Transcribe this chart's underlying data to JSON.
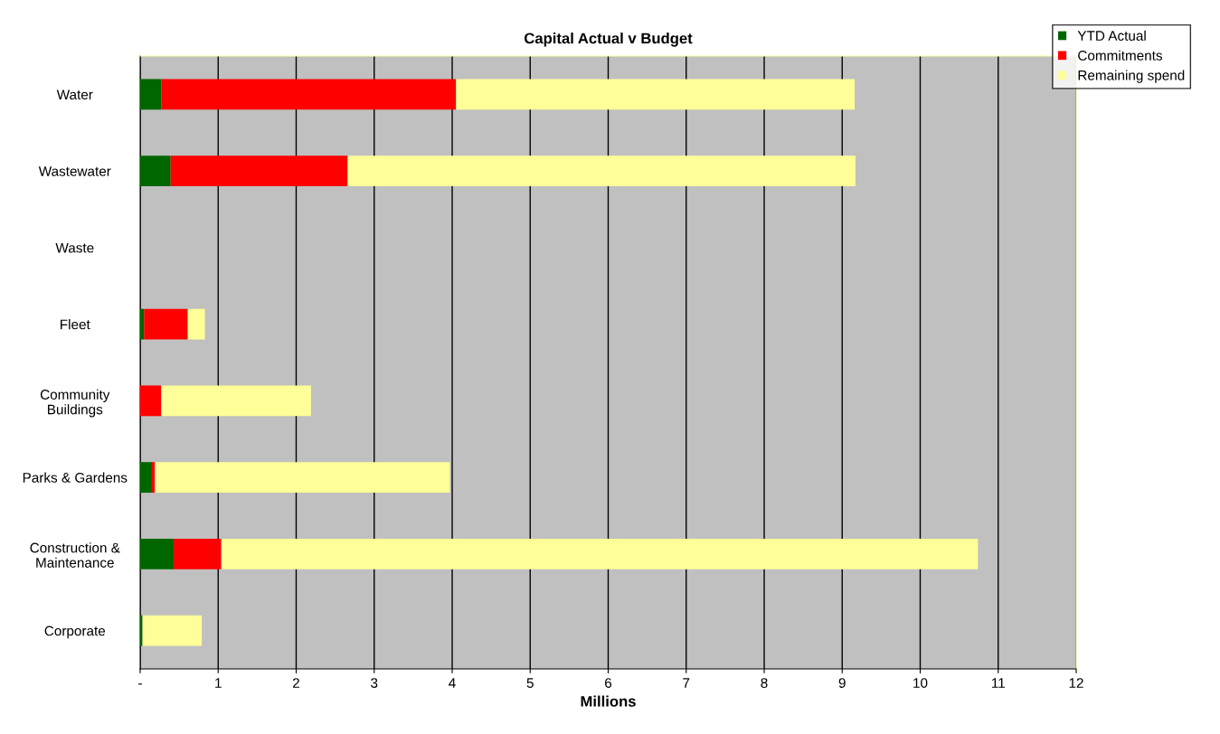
{
  "chart_data": {
    "type": "bar",
    "orientation": "horizontal",
    "stacked": true,
    "title": "Capital Actual v Budget",
    "xlabel": "Millions",
    "categories": [
      "Water",
      "Wastewater",
      "Waste",
      "Fleet",
      "Community\nBuildings",
      "Parks & Gardens",
      "Construction &\nMaintenance",
      "Corporate"
    ],
    "series": [
      {
        "name": "YTD Actual",
        "color": "#006600",
        "values": [
          0.27,
          0.39,
          0,
          0.05,
          0,
          0.15,
          0.43,
          0.03
        ]
      },
      {
        "name": "Commitments",
        "color": "#ff0000",
        "values": [
          3.78,
          2.27,
          0,
          0.56,
          0.27,
          0.04,
          0.61,
          0
        ]
      },
      {
        "name": "Remaining spend",
        "color": "#ffff99",
        "values": [
          5.11,
          6.51,
          0,
          0.22,
          1.92,
          3.78,
          9.7,
          0.76
        ]
      }
    ],
    "xlim": [
      0,
      12
    ],
    "xticks": [
      {
        "value": 0,
        "label": "-"
      },
      1,
      2,
      3,
      4,
      5,
      6,
      7,
      8,
      9,
      10,
      11,
      12
    ],
    "grid": "x",
    "legend": "top right"
  }
}
